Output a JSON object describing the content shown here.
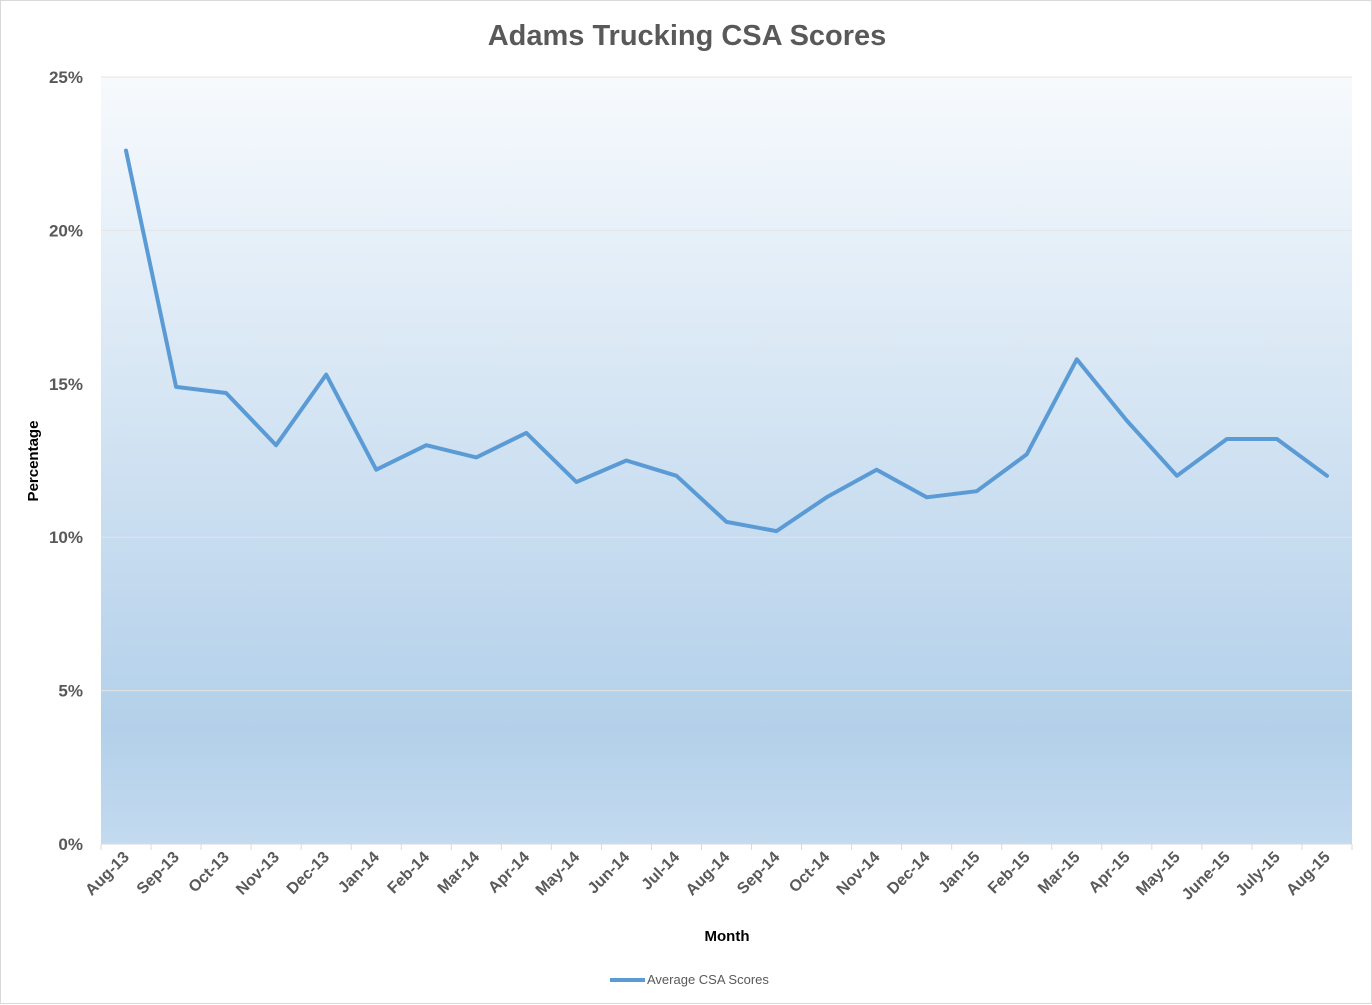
{
  "chart_data": {
    "type": "line",
    "title": "Adams Trucking CSA Scores",
    "xlabel": "Month",
    "ylabel": "Percentage",
    "ylim": [
      0,
      25
    ],
    "yticks": [
      "0%",
      "5%",
      "10%",
      "15%",
      "20%",
      "25%"
    ],
    "grid": "horizontal",
    "legend": "bottom",
    "categories": [
      "Aug-13",
      "Sep-13",
      "Oct-13",
      "Nov-13",
      "Dec-13",
      "Jan-14",
      "Feb-14",
      "Mar-14",
      "Apr-14",
      "May-14",
      "Jun-14",
      "Jul-14",
      "Aug-14",
      "Sep-14",
      "Oct-14",
      "Nov-14",
      "Dec-14",
      "Jan-15",
      "Feb-15",
      "Mar-15",
      "Apr-15",
      "May-15",
      "June-15",
      "July-15",
      "Aug-15"
    ],
    "series": [
      {
        "name": "Average CSA Scores",
        "color": "#5b9bd5",
        "values": [
          22.6,
          14.9,
          14.7,
          13.0,
          15.3,
          12.2,
          13.0,
          12.6,
          13.4,
          11.8,
          12.5,
          12.0,
          10.5,
          10.2,
          11.3,
          12.2,
          11.3,
          11.5,
          12.7,
          15.8,
          13.8,
          12.0,
          13.2,
          13.2,
          12.0
        ]
      }
    ]
  }
}
